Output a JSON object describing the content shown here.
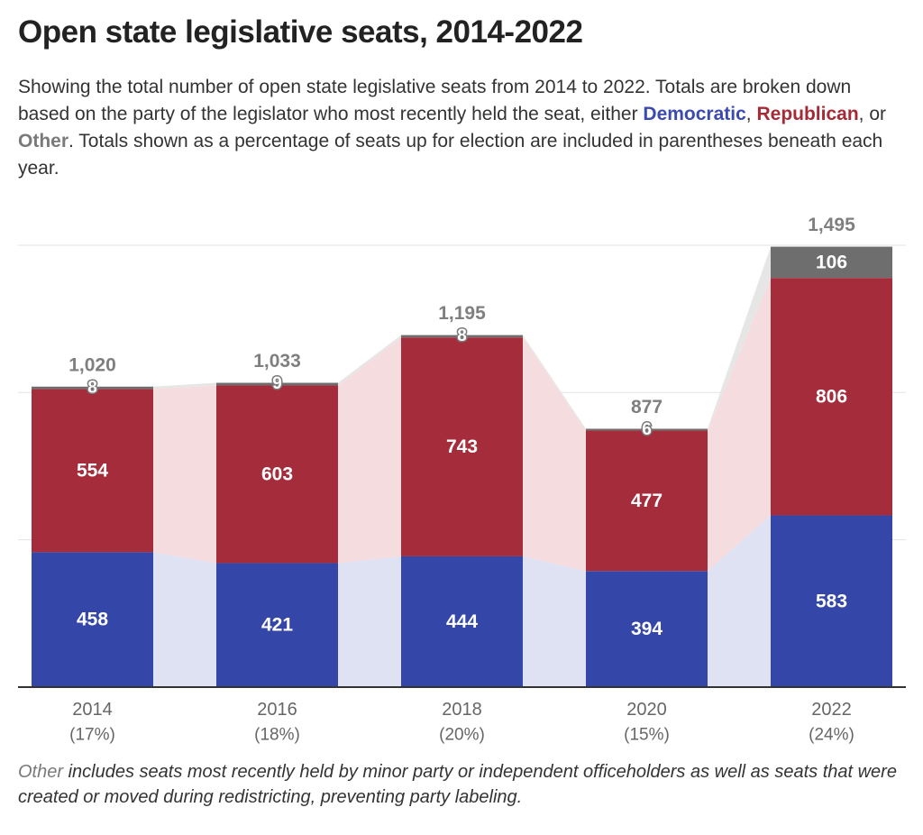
{
  "title": "Open state legislative seats, 2014-2022",
  "subtitle": {
    "text_before": "Showing the total number of open state legislative seats from 2014 to 2022. Totals are broken down based on the party of the legislator who most recently held the seat, either ",
    "democratic": "Democratic",
    "comma1": ", ",
    "republican": "Republican",
    "or": ", or ",
    "other": "Other",
    "text_after": ". Totals shown as a percentage of seats up for election are included in parentheses beneath each year."
  },
  "note": {
    "other": "Other",
    "text": " includes seats most recently held by minor party or independent officeholders as well as seats that were created or moved during redistricting, preventing party labeling."
  },
  "colors": {
    "democratic": "#3447a8",
    "republican": "#a52d3b",
    "other": "#6e6e6e",
    "dem_band": "#dfe2f3",
    "rep_band": "#f4dcdf",
    "oth_band": "#e6e6e6",
    "gridline": "#e3e3e3",
    "baseline": "#333333"
  },
  "chart_data": {
    "type": "bar",
    "stacked": true,
    "categories": [
      "2014",
      "2016",
      "2018",
      "2020",
      "2022"
    ],
    "category_sublabels": [
      "(17%)",
      "(18%)",
      "(20%)",
      "(15%)",
      "(24%)"
    ],
    "series": [
      {
        "name": "Democratic",
        "values": [
          458,
          421,
          444,
          394,
          583
        ]
      },
      {
        "name": "Republican",
        "values": [
          554,
          603,
          743,
          477,
          806
        ]
      },
      {
        "name": "Other",
        "values": [
          8,
          9,
          8,
          6,
          106
        ]
      }
    ],
    "totals": [
      1020,
      1033,
      1195,
      877,
      1495
    ],
    "total_labels": [
      "1,020",
      "1,033",
      "1,195",
      "877",
      "1,495"
    ],
    "ylim": [
      0,
      1500
    ],
    "grid": true,
    "legend": "inline in subtitle"
  }
}
